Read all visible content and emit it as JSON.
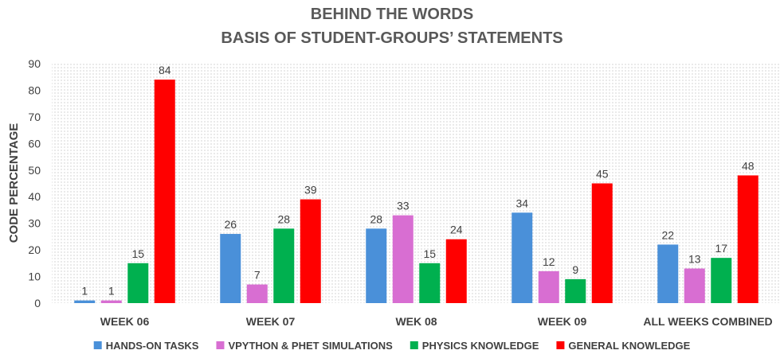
{
  "chart_data": {
    "type": "bar",
    "title": "BEHIND THE WORDS",
    "subtitle": "BASIS OF STUDENT-GROUPS’ STATEMENTS",
    "xlabel": "",
    "ylabel": "CODE PERCENTAGE",
    "ylim": [
      0,
      90
    ],
    "yticks": [
      0,
      10,
      20,
      30,
      40,
      50,
      60,
      70,
      80,
      90
    ],
    "grid": false,
    "legend_position": "bottom",
    "categories": [
      "WEEK 06",
      "WEEK 07",
      "WEK 08",
      "WEEK 09",
      "ALL WEEKS COMBINED"
    ],
    "series": [
      {
        "name": "HANDS-ON TASKS",
        "color": "#4a90d9",
        "values": [
          1,
          26,
          28,
          34,
          22
        ]
      },
      {
        "name": "VPYTHON & PHET SIMULATIONS",
        "color": "#d86ed2",
        "values": [
          1,
          7,
          33,
          12,
          13
        ]
      },
      {
        "name": "PHYSICS KNOWLEDGE",
        "color": "#00b04f",
        "values": [
          15,
          28,
          15,
          9,
          17
        ]
      },
      {
        "name": "GENERAL KNOWLEDGE",
        "color": "#ff0000",
        "values": [
          84,
          39,
          24,
          45,
          48
        ]
      }
    ]
  }
}
